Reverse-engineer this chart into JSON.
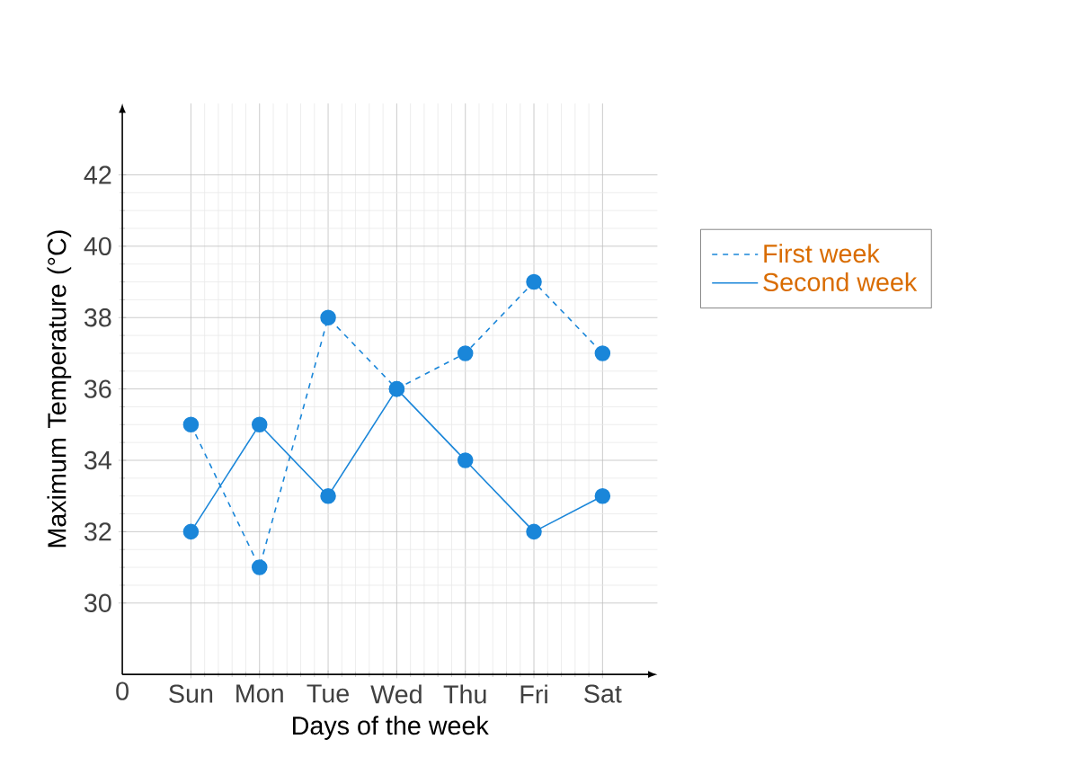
{
  "chart_data": {
    "type": "line",
    "xlabel": "Days of the week",
    "ylabel": "Maximum Temperature (°C)",
    "categories": [
      "Sun",
      "Mon",
      "Tue",
      "Wed",
      "Thu",
      "Fri",
      "Sat"
    ],
    "series": [
      {
        "name": "First week",
        "color": "#1a86d9",
        "line_style": "dashed",
        "values": [
          35,
          31,
          38,
          36,
          37,
          39,
          37
        ]
      },
      {
        "name": "Second week",
        "color": "#1a86d9",
        "line_style": "solid",
        "values": [
          32,
          35,
          33,
          36,
          34,
          32,
          33
        ]
      }
    ],
    "ylim": [
      28,
      44
    ],
    "yticks": [
      30,
      32,
      34,
      36,
      38,
      40,
      42
    ],
    "annotations": [
      "0"
    ],
    "grid": true,
    "legend": "right",
    "marker": "circle"
  }
}
